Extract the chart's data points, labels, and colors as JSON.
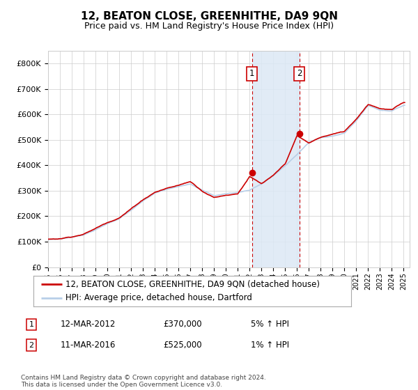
{
  "title": "12, BEATON CLOSE, GREENHITHE, DA9 9QN",
  "subtitle": "Price paid vs. HM Land Registry's House Price Index (HPI)",
  "ylim": [
    0,
    850000
  ],
  "yticks": [
    0,
    100000,
    200000,
    300000,
    400000,
    500000,
    600000,
    700000,
    800000
  ],
  "ytick_labels": [
    "£0",
    "£100K",
    "£200K",
    "£300K",
    "£400K",
    "£500K",
    "£600K",
    "£700K",
    "£800K"
  ],
  "xlim_start": 1995.0,
  "xlim_end": 2025.5,
  "xticks": [
    1995,
    1996,
    1997,
    1998,
    1999,
    2000,
    2001,
    2002,
    2003,
    2004,
    2005,
    2006,
    2007,
    2008,
    2009,
    2010,
    2011,
    2012,
    2013,
    2014,
    2015,
    2016,
    2017,
    2018,
    2019,
    2020,
    2021,
    2022,
    2023,
    2024,
    2025
  ],
  "hpi_color": "#b8cfe8",
  "price_color": "#cc0000",
  "annotation_bg": "#dce8f5",
  "dashed_line_color": "#cc0000",
  "event1_x": 2012.19,
  "event1_y": 370000,
  "event2_x": 2016.19,
  "event2_y": 525000,
  "legend_line1": "12, BEATON CLOSE, GREENHITHE, DA9 9QN (detached house)",
  "legend_line2": "HPI: Average price, detached house, Dartford",
  "ann1_date": "12-MAR-2012",
  "ann1_price": "£370,000",
  "ann1_hpi": "5% ↑ HPI",
  "ann2_date": "11-MAR-2016",
  "ann2_price": "£525,000",
  "ann2_hpi": "1% ↑ HPI",
  "footer": "Contains HM Land Registry data © Crown copyright and database right 2024.\nThis data is licensed under the Open Government Licence v3.0.",
  "background_color": "#ffffff"
}
